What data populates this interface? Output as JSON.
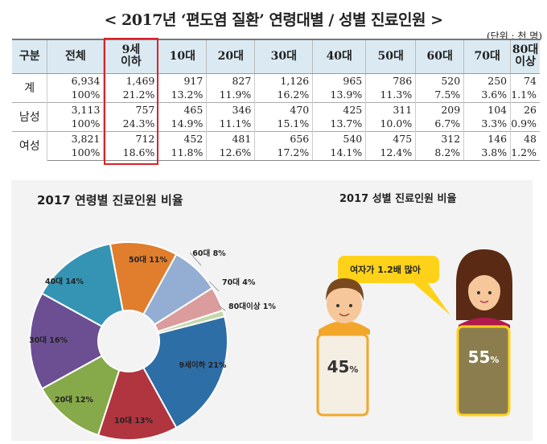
{
  "title": "< 2017년 ‘편도염 질환’ 연령대별 / 성별 진료인원 >",
  "unit": "(단위 : 천 명)",
  "table": {
    "headers": [
      "구분",
      "전체",
      "9세\n이하",
      "10대",
      "20대",
      "30대",
      "40대",
      "50대",
      "60대",
      "70대",
      "80대\n이상"
    ],
    "rows": [
      {
        "label": "계",
        "counts": [
          "6,934",
          "1,469",
          "917",
          "827",
          "1,126",
          "965",
          "786",
          "520",
          "250",
          "74"
        ],
        "shares": [
          "100%",
          "21.2%",
          "13.2%",
          "11.9%",
          "16.2%",
          "13.9%",
          "11.3%",
          "7.5%",
          "3.6%",
          "1.1%"
        ]
      },
      {
        "label": "남성",
        "counts": [
          "3,113",
          "757",
          "465",
          "346",
          "470",
          "425",
          "311",
          "209",
          "104",
          "26"
        ],
        "shares": [
          "100%",
          "24.3%",
          "14.9%",
          "11.1%",
          "15.1%",
          "13.7%",
          "10.0%",
          "6.7%",
          "3.3%",
          "0.9%"
        ]
      },
      {
        "label": "여성",
        "counts": [
          "3,821",
          "712",
          "452",
          "481",
          "656",
          "540",
          "475",
          "312",
          "146",
          "48"
        ],
        "shares": [
          "100%",
          "18.6%",
          "11.8%",
          "12.6%",
          "17.2%",
          "14.1%",
          "12.4%",
          "8.2%",
          "3.8%",
          "1.2%"
        ]
      }
    ]
  },
  "chart_data": [
    {
      "type": "pie",
      "title": "2017 연령별 진료인원 비율",
      "slices": [
        {
          "label": "9세이하 21%",
          "value": 21,
          "color": "#2e6ea6"
        },
        {
          "label": "10대 13%",
          "value": 13,
          "color": "#b0353f"
        },
        {
          "label": "20대 12%",
          "value": 12,
          "color": "#86a94a"
        },
        {
          "label": "30대 16%",
          "value": 16,
          "color": "#6c4f92"
        },
        {
          "label": "40대 14%",
          "value": 14,
          "color": "#3594b4"
        },
        {
          "label": "50대 11%",
          "value": 11,
          "color": "#e07e2e"
        },
        {
          "label": "60대 8%",
          "value": 8,
          "color": "#94aed3"
        },
        {
          "label": "70대 4%",
          "value": 4,
          "color": "#db9c9d"
        },
        {
          "label": "80대이상 1%",
          "value": 1,
          "color": "#c4d8a8"
        }
      ]
    },
    {
      "type": "bar",
      "title": "2017 성별 진료인원 비율",
      "categories": [
        "남성",
        "여성"
      ],
      "values": [
        45,
        55
      ],
      "value_labels": [
        "45",
        "55"
      ],
      "value_suffix": "%",
      "annotation": "여자가 1.2배 많아",
      "colors": {
        "male": "#f5eee2",
        "female": "#8b7d4e"
      }
    }
  ]
}
